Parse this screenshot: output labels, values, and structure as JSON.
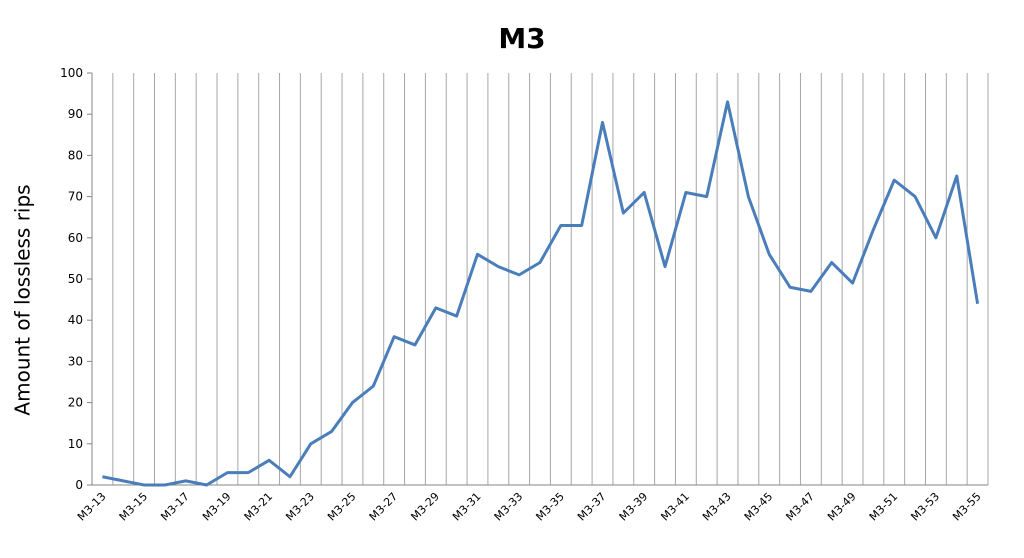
{
  "chart_data": {
    "type": "line",
    "title": "M3",
    "y_label": "Amount of lossless rips",
    "categories": [
      "M3-13",
      null,
      "M3-15",
      null,
      "M3-17",
      null,
      "M3-19",
      null,
      "M3-21",
      null,
      "M3-23",
      null,
      "M3-25",
      null,
      "M3-27",
      null,
      "M3-29",
      null,
      "M3-31",
      null,
      "M3-33",
      null,
      "M3-35",
      null,
      "M3-37",
      null,
      "M3-39",
      null,
      "M3-41",
      null,
      "M3-43",
      null,
      "M3-45",
      null,
      "M3-47",
      null,
      "M3-49",
      null,
      "M3-51",
      null,
      "M3-53",
      null,
      "M3-55"
    ],
    "values": [
      2,
      1,
      0,
      0,
      1,
      0,
      3,
      3,
      6,
      2,
      10,
      13,
      20,
      24,
      36,
      34,
      43,
      41,
      56,
      53,
      51,
      54,
      63,
      63,
      88,
      66,
      71,
      53,
      71,
      70,
      93,
      70,
      56,
      48,
      47,
      54,
      49,
      62,
      74,
      70,
      60,
      75,
      44
    ],
    "color": "#4a7ebb",
    "ylim": [
      0,
      100
    ],
    "yticks": [
      0,
      10,
      20,
      30,
      40,
      50,
      60,
      70,
      80,
      90,
      100
    ],
    "grid": true
  }
}
